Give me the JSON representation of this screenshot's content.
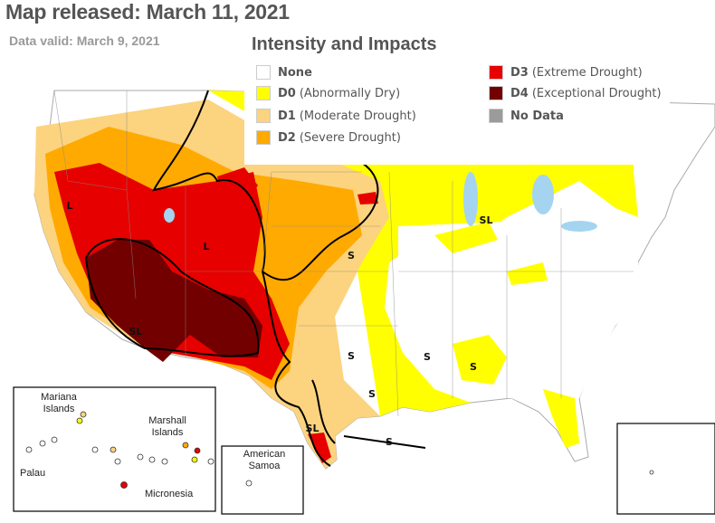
{
  "header": {
    "title": "Map released: March 11, 2021",
    "subtitle": "Data valid: March 9, 2021"
  },
  "legend": {
    "title": "Intensity and Impacts",
    "items": [
      {
        "code": "None",
        "color": "#ffffff"
      },
      {
        "code": "D0",
        "label": "(Abnormally Dry)",
        "color": "#ffff00"
      },
      {
        "code": "D1",
        "label": "(Moderate Drought)",
        "color": "#fcd37f"
      },
      {
        "code": "D2",
        "label": "(Severe Drought)",
        "color": "#ffaa00"
      },
      {
        "code": "D3",
        "label": "(Extreme Drought)",
        "color": "#e60000"
      },
      {
        "code": "D4",
        "label": "(Exceptional Drought)",
        "color": "#730000"
      },
      {
        "code": "No Data",
        "color": "#9b9b9b"
      }
    ]
  },
  "map_labels": [
    "L",
    "L",
    "SL",
    "S",
    "S",
    "S",
    "S",
    "S",
    "SL",
    "SL",
    "S"
  ],
  "insets": {
    "pacific": [
      "Mariana Islands",
      "Marshall Islands",
      "Palau",
      "Micronesia"
    ],
    "samoa": "American Samoa"
  }
}
